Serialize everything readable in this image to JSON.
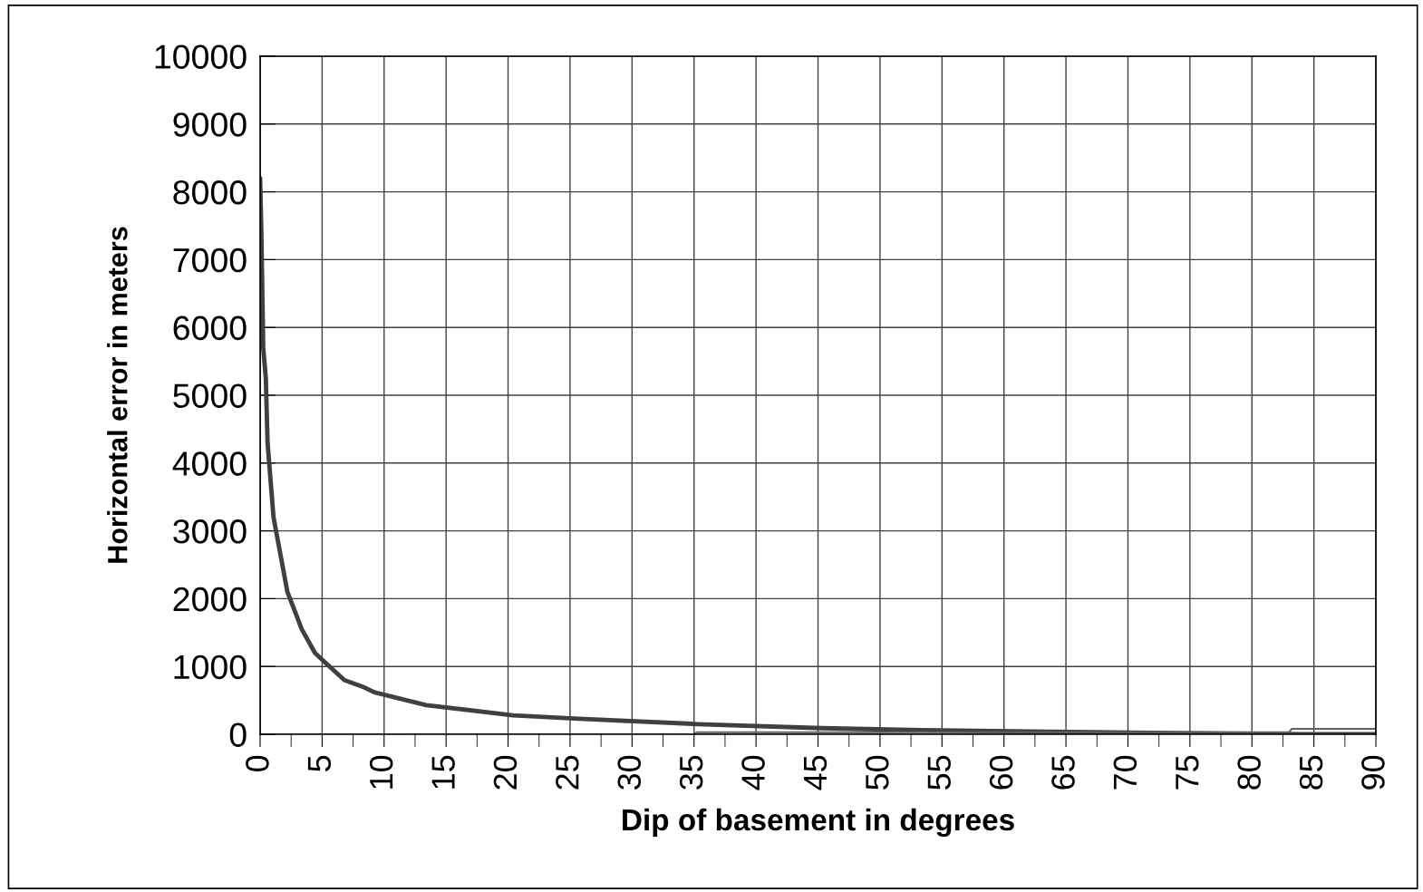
{
  "chart_data": {
    "type": "line",
    "xlabel": "Dip of basement in degrees",
    "ylabel": "Horizontal error in meters",
    "series": [
      {
        "color": "#404040",
        "x": [
          0,
          0.1,
          0.25,
          0.46,
          0.6,
          1.08,
          2.2,
          3.36,
          4.42,
          5.3,
          6.8,
          8.3,
          9.2,
          13.4,
          20.4,
          25.7,
          35.3,
          45.3,
          53.3,
          62,
          84,
          90
        ],
        "values": [
          8200,
          7400,
          5700,
          5250,
          4300,
          3200,
          2100,
          1550,
          1200,
          1050,
          800,
          700,
          620,
          430,
          280,
          230,
          150,
          90,
          60,
          40,
          0,
          0
        ]
      },
      {
        "color": "#606060",
        "x": [
          12,
          35,
          35.2,
          83,
          83.2,
          90
        ],
        "values": [
          0,
          0,
          30,
          30,
          80,
          80
        ]
      }
    ],
    "xlim": [
      0,
      90
    ],
    "ylim": [
      0,
      10000
    ],
    "xticks": [
      0,
      {
        "value": 2.5,
        "label": null
      },
      5,
      {
        "value": 7.5,
        "label": null
      },
      10,
      {
        "value": 12.5,
        "label": null
      },
      15,
      {
        "value": 17.5,
        "label": null
      },
      20,
      {
        "value": 22.5,
        "label": null
      },
      25,
      {
        "value": 27.5,
        "label": null
      },
      30,
      {
        "value": 32.5,
        "label": null
      },
      35,
      {
        "value": 37.5,
        "label": null
      },
      40,
      {
        "value": 42.5,
        "label": null
      },
      45,
      {
        "value": 47.5,
        "label": null
      },
      50,
      {
        "value": 52.5,
        "label": null
      },
      55,
      {
        "value": 57.5,
        "label": null
      },
      60,
      {
        "value": 62.5,
        "label": null
      },
      65,
      {
        "value": 67.5,
        "label": null
      },
      70,
      {
        "value": 72.5,
        "label": null
      },
      75,
      {
        "value": 77.5,
        "label": null
      },
      80,
      {
        "value": 82.5,
        "label": null
      },
      85,
      {
        "value": 87.5,
        "label": null
      },
      90
    ],
    "yticks": [
      0,
      1000,
      2000,
      3000,
      4000,
      5000,
      6000,
      7000,
      8000,
      9000,
      10000
    ],
    "grid": true,
    "legend": false
  }
}
